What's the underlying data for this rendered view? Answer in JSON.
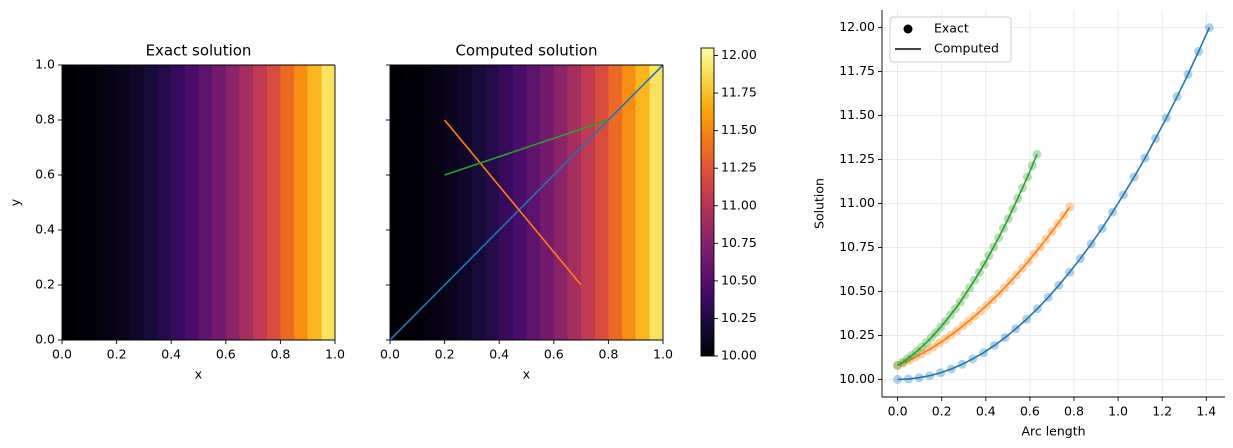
{
  "chart_data": [
    {
      "type": "heatmap",
      "title": "Exact solution",
      "xlabel": "x",
      "ylabel": "y",
      "xlim": [
        0,
        1
      ],
      "ylim": [
        0,
        1
      ],
      "xticks": [
        {
          "value": 0,
          "label": "0.0"
        },
        0.2,
        0.4,
        0.6,
        0.8,
        {
          "value": 1,
          "label": "1.0"
        }
      ],
      "yticks": [
        {
          "value": 0,
          "label": "0.0"
        },
        0.2,
        0.4,
        0.6,
        0.8,
        {
          "value": 1,
          "label": "1.0"
        }
      ],
      "xbins": [
        0,
        0.05,
        0.1,
        0.15,
        0.2,
        0.25,
        0.3,
        0.35,
        0.4,
        0.45,
        0.5,
        0.55,
        0.6,
        0.65,
        0.7,
        0.75,
        0.8,
        0.85,
        0.9,
        0.95,
        1
      ],
      "ybins": [
        0,
        1
      ],
      "z": [
        [
          10.001,
          10.011,
          10.031,
          10.061,
          10.101,
          10.151,
          10.211,
          10.281,
          10.361,
          10.451,
          10.551,
          10.661,
          10.781,
          10.911,
          11.051,
          11.201,
          11.361,
          11.531,
          11.711,
          11.901
        ]
      ],
      "colormap": "inferno",
      "clim": [
        10,
        12.05
      ]
    },
    {
      "type": "heatmap",
      "title": "Computed solution",
      "xlabel": "x",
      "xlim": [
        0,
        1
      ],
      "ylim": [
        0,
        1
      ],
      "xticks": [
        {
          "value": 0,
          "label": "0.0"
        },
        0.2,
        0.4,
        0.6,
        0.8,
        {
          "value": 1,
          "label": "1.0"
        }
      ],
      "yticks": [
        0,
        0.2,
        0.4,
        0.6,
        0.8,
        1
      ],
      "show_yticklabels": false,
      "xbins": [
        0,
        0.05,
        0.1,
        0.15,
        0.2,
        0.25,
        0.3,
        0.35,
        0.4,
        0.45,
        0.5,
        0.55,
        0.6,
        0.65,
        0.7,
        0.75,
        0.8,
        0.85,
        0.9,
        0.95,
        1
      ],
      "ybins": [
        0,
        1
      ],
      "z": [
        [
          10.001,
          10.011,
          10.031,
          10.061,
          10.101,
          10.151,
          10.211,
          10.281,
          10.361,
          10.451,
          10.551,
          10.661,
          10.781,
          10.911,
          11.051,
          11.201,
          11.361,
          11.531,
          11.711,
          11.901
        ]
      ],
      "colormap": "inferno",
      "clim": [
        10,
        12.05
      ],
      "lines": [
        {
          "color": "#1f77b4",
          "x": [
            0,
            1
          ],
          "y": [
            0,
            1
          ]
        },
        {
          "color": "#ff7f0e",
          "x": [
            0.2,
            0.7
          ],
          "y": [
            0.8,
            0.2
          ]
        },
        {
          "color": "#2ca02c",
          "x": [
            0.2,
            0.8
          ],
          "y": [
            0.6,
            0.8
          ]
        }
      ],
      "colorbar": {
        "lim": [
          10,
          12.05
        ],
        "ticks": [
          {
            "value": 10,
            "label": "10.00"
          },
          10.25,
          {
            "value": 10.5,
            "label": "10.50"
          },
          10.75,
          {
            "value": 11,
            "label": "11.00"
          },
          11.25,
          {
            "value": 11.5,
            "label": "11.50"
          },
          11.75,
          {
            "value": 12,
            "label": "12.00"
          }
        ]
      }
    },
    {
      "type": "line",
      "xlabel": "Arc length",
      "ylabel": "Solution",
      "xlim": [
        -0.0707,
        1.4849
      ],
      "ylim": [
        9.9,
        12.1
      ],
      "xticks": [
        {
          "value": 0,
          "label": "0.0"
        },
        0.2,
        0.4,
        0.6,
        0.8,
        {
          "value": 1,
          "label": "1.0"
        },
        1.2,
        1.4
      ],
      "yticks": [
        {
          "value": 10,
          "label": "10.00"
        },
        10.25,
        {
          "value": 10.5,
          "label": "10.50"
        },
        10.75,
        {
          "value": 11,
          "label": "11.00"
        },
        11.25,
        {
          "value": 11.5,
          "label": "11.50"
        },
        11.75,
        {
          "value": 12,
          "label": "12.00"
        }
      ],
      "grid": true,
      "spines": [
        "left",
        "bottom"
      ],
      "legend": {
        "loc": "upper left",
        "entries": [
          {
            "label": "Exact",
            "marker": "dot",
            "color": "#000000"
          },
          {
            "label": "Computed",
            "marker": "line",
            "color": "#000000"
          }
        ]
      },
      "lines": [
        {
          "color": "#1f77b4",
          "x": [
            0,
            0.049,
            0.098,
            0.146,
            0.195,
            0.244,
            0.293,
            0.341,
            0.39,
            0.439,
            0.488,
            0.536,
            0.585,
            0.634,
            0.683,
            0.731,
            0.78,
            0.829,
            0.878,
            0.927,
            0.975,
            1.024,
            1.073,
            1.122,
            1.17,
            1.219,
            1.268,
            1.317,
            1.365,
            1.414
          ],
          "values": [
            10,
            10.002,
            10.01,
            10.021,
            10.038,
            10.059,
            10.086,
            10.117,
            10.152,
            10.193,
            10.238,
            10.288,
            10.342,
            10.402,
            10.466,
            10.535,
            10.609,
            10.687,
            10.77,
            10.858,
            10.951,
            11.049,
            11.151,
            11.258,
            11.37,
            11.486,
            11.608,
            11.734,
            11.864,
            12
          ]
        },
        {
          "color": "#ff7f0e",
          "x": [
            0,
            0.027,
            0.054,
            0.081,
            0.108,
            0.135,
            0.162,
            0.189,
            0.215,
            0.242,
            0.269,
            0.296,
            0.323,
            0.35,
            0.377,
            0.404,
            0.431,
            0.458,
            0.485,
            0.512,
            0.539,
            0.566,
            0.593,
            0.619,
            0.646,
            0.673,
            0.7,
            0.727,
            0.754,
            0.781
          ],
          "values": [
            10.08,
            10.094,
            10.11,
            10.127,
            10.145,
            10.164,
            10.184,
            10.206,
            10.228,
            10.252,
            10.277,
            10.304,
            10.331,
            10.36,
            10.39,
            10.421,
            10.453,
            10.486,
            10.521,
            10.557,
            10.594,
            10.632,
            10.671,
            10.712,
            10.753,
            10.796,
            10.841,
            10.886,
            10.932,
            10.98
          ]
        },
        {
          "color": "#2ca02c",
          "x": [
            0,
            0.022,
            0.044,
            0.065,
            0.087,
            0.109,
            0.131,
            0.153,
            0.174,
            0.196,
            0.218,
            0.24,
            0.262,
            0.284,
            0.305,
            0.327,
            0.349,
            0.371,
            0.393,
            0.414,
            0.436,
            0.458,
            0.48,
            0.502,
            0.523,
            0.545,
            0.567,
            0.589,
            0.611,
            0.632
          ],
          "values": [
            10.08,
            10.097,
            10.117,
            10.137,
            10.16,
            10.184,
            10.21,
            10.238,
            10.267,
            10.298,
            10.331,
            10.366,
            10.402,
            10.44,
            10.48,
            10.521,
            10.564,
            10.609,
            10.655,
            10.704,
            10.753,
            10.805,
            10.859,
            10.914,
            10.97,
            11.029,
            11.089,
            11.151,
            11.215,
            11.28
          ]
        }
      ]
    }
  ]
}
